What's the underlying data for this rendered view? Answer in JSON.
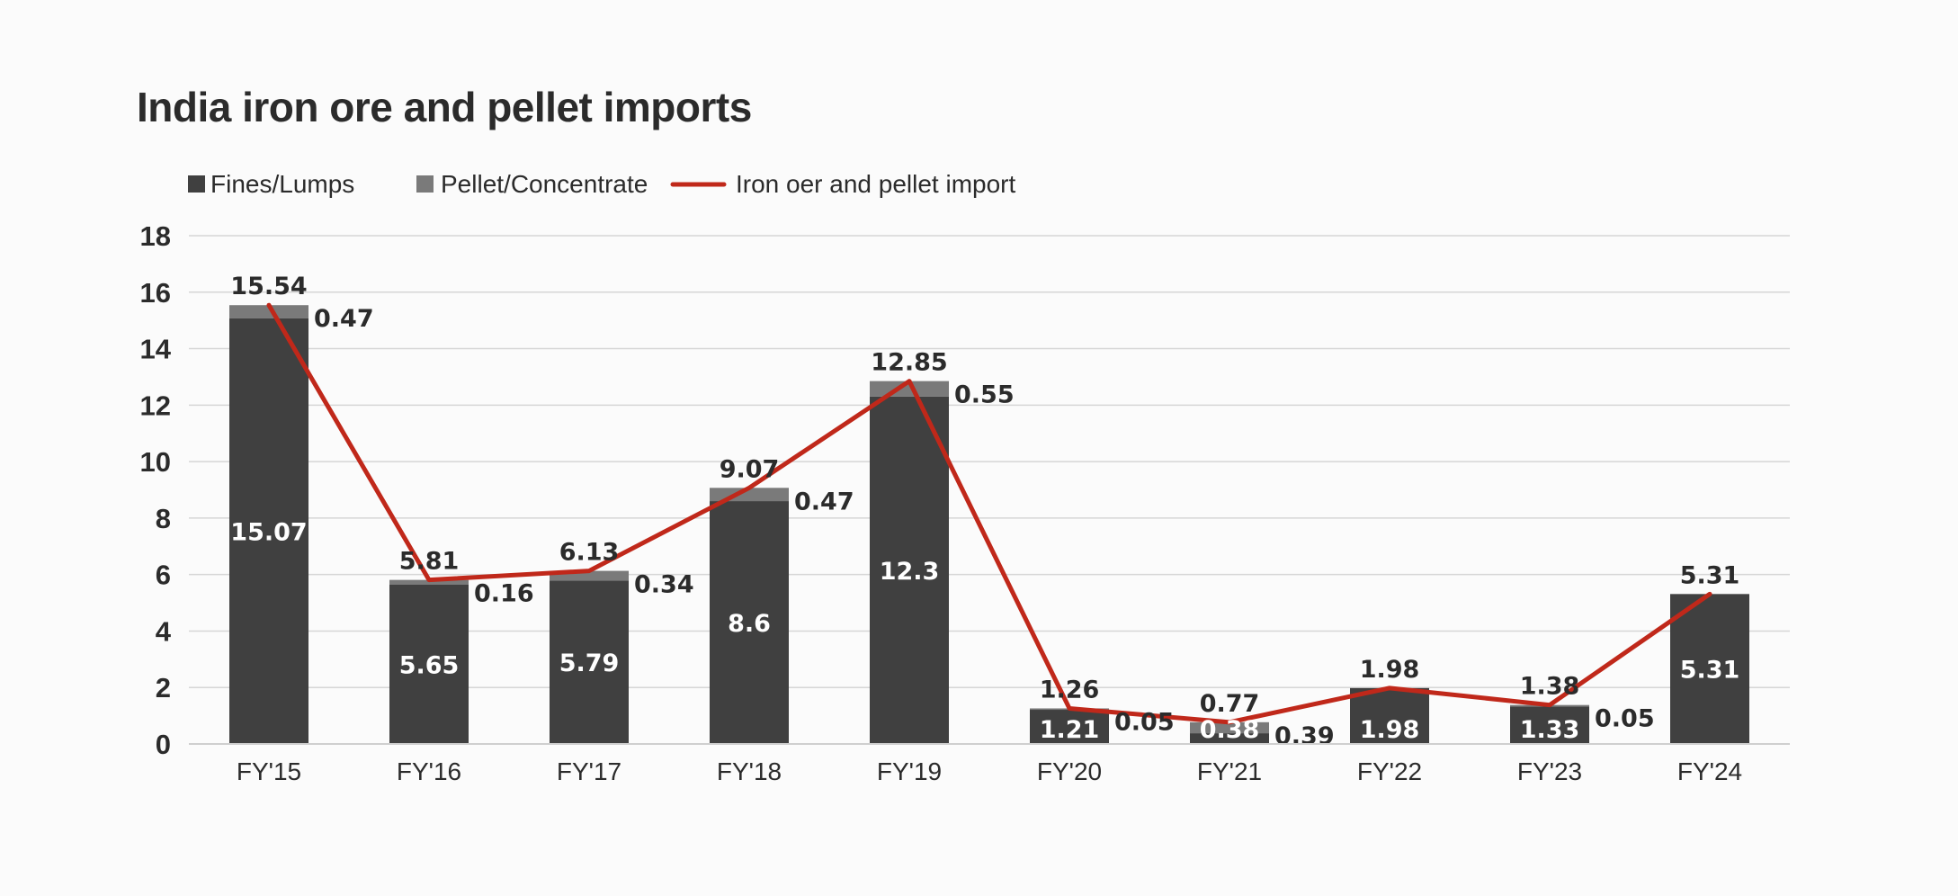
{
  "chart_data": {
    "type": "bar",
    "title": "India iron ore and pellet imports",
    "categories": [
      "FY'15",
      "FY'16",
      "FY'17",
      "FY'18",
      "FY'19",
      "FY'20",
      "FY'21",
      "FY'22",
      "FY'23",
      "FY'24"
    ],
    "series": [
      {
        "name": "Fines/Lumps",
        "type": "bar",
        "stack": "imports",
        "color": "#404040",
        "values": [
          15.07,
          5.65,
          5.79,
          8.6,
          12.3,
          1.21,
          0.38,
          1.98,
          1.33,
          5.31
        ]
      },
      {
        "name": "Pellet/Concentrate",
        "type": "bar",
        "stack": "imports",
        "color": "#7a7a7a",
        "values": [
          0.47,
          0.16,
          0.34,
          0.47,
          0.55,
          0.05,
          0.39,
          null,
          0.05,
          null
        ]
      },
      {
        "name": "Iron oer and pellet import",
        "type": "line",
        "color": "#c0281a",
        "values": [
          15.54,
          5.81,
          6.13,
          9.07,
          12.85,
          1.26,
          0.77,
          1.98,
          1.38,
          5.31
        ]
      }
    ],
    "yticks": [
      "0",
      "2",
      "4",
      "6",
      "8",
      "10",
      "12",
      "14",
      "16",
      "18"
    ],
    "ylim": [
      0,
      18
    ],
    "xlabel": "",
    "ylabel": "",
    "grid": true,
    "legend_position": "top-left"
  }
}
